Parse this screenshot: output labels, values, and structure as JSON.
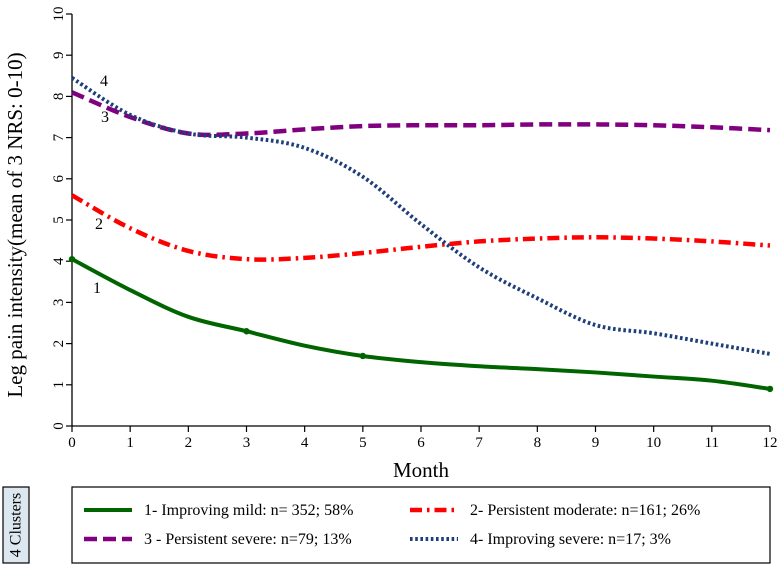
{
  "chart_data": {
    "type": "line",
    "xlabel": "Month",
    "ylabel": "Leg pain intensity(mean of 3 NRS: 0-10)",
    "xlim": [
      0,
      12
    ],
    "ylim": [
      0,
      10
    ],
    "x_ticks": [
      0,
      1,
      2,
      3,
      4,
      5,
      6,
      7,
      8,
      9,
      10,
      11,
      12
    ],
    "y_ticks": [
      0,
      1,
      2,
      3,
      4,
      5,
      6,
      7,
      8,
      9,
      10
    ],
    "grid": false,
    "legend_title": "4 Clusters",
    "legend_position": "bottom",
    "series": [
      {
        "name": "1- Improving mild: n= 352; 58%",
        "curve_label": "1",
        "color": "#006400",
        "style": "solid",
        "x": [
          0,
          1,
          2,
          3,
          4,
          5,
          6,
          7,
          8,
          9,
          10,
          11,
          12
        ],
        "values": [
          4.05,
          3.3,
          2.65,
          2.3,
          1.95,
          1.7,
          1.55,
          1.45,
          1.38,
          1.3,
          1.2,
          1.1,
          0.9
        ]
      },
      {
        "name": "2- Persistent moderate: n=161; 26%",
        "curve_label": "2",
        "color": "#ff0000",
        "style": "dashdot",
        "x": [
          0,
          1,
          2,
          3,
          4,
          5,
          6,
          7,
          8,
          9,
          10,
          11,
          12
        ],
        "values": [
          5.6,
          4.8,
          4.25,
          4.05,
          4.08,
          4.2,
          4.35,
          4.48,
          4.55,
          4.58,
          4.55,
          4.48,
          4.38
        ]
      },
      {
        "name": "3 - Persistent severe: n=79; 13%",
        "curve_label": "3",
        "color": "#800080",
        "style": "dash",
        "x": [
          0,
          1,
          2,
          3,
          4,
          5,
          6,
          7,
          8,
          9,
          10,
          11,
          12
        ],
        "values": [
          8.1,
          7.5,
          7.1,
          7.1,
          7.2,
          7.28,
          7.3,
          7.3,
          7.32,
          7.32,
          7.3,
          7.25,
          7.18
        ]
      },
      {
        "name": "4- Improving severe: n=17; 3%",
        "curve_label": "4",
        "color": "#1f3f7a",
        "style": "dot",
        "x": [
          0,
          1,
          2,
          3,
          4,
          5,
          6,
          7,
          8,
          9,
          10,
          11,
          12
        ],
        "values": [
          8.45,
          7.55,
          7.1,
          7.0,
          6.75,
          6.05,
          4.9,
          3.85,
          3.1,
          2.45,
          2.25,
          2.0,
          1.75
        ]
      }
    ]
  }
}
